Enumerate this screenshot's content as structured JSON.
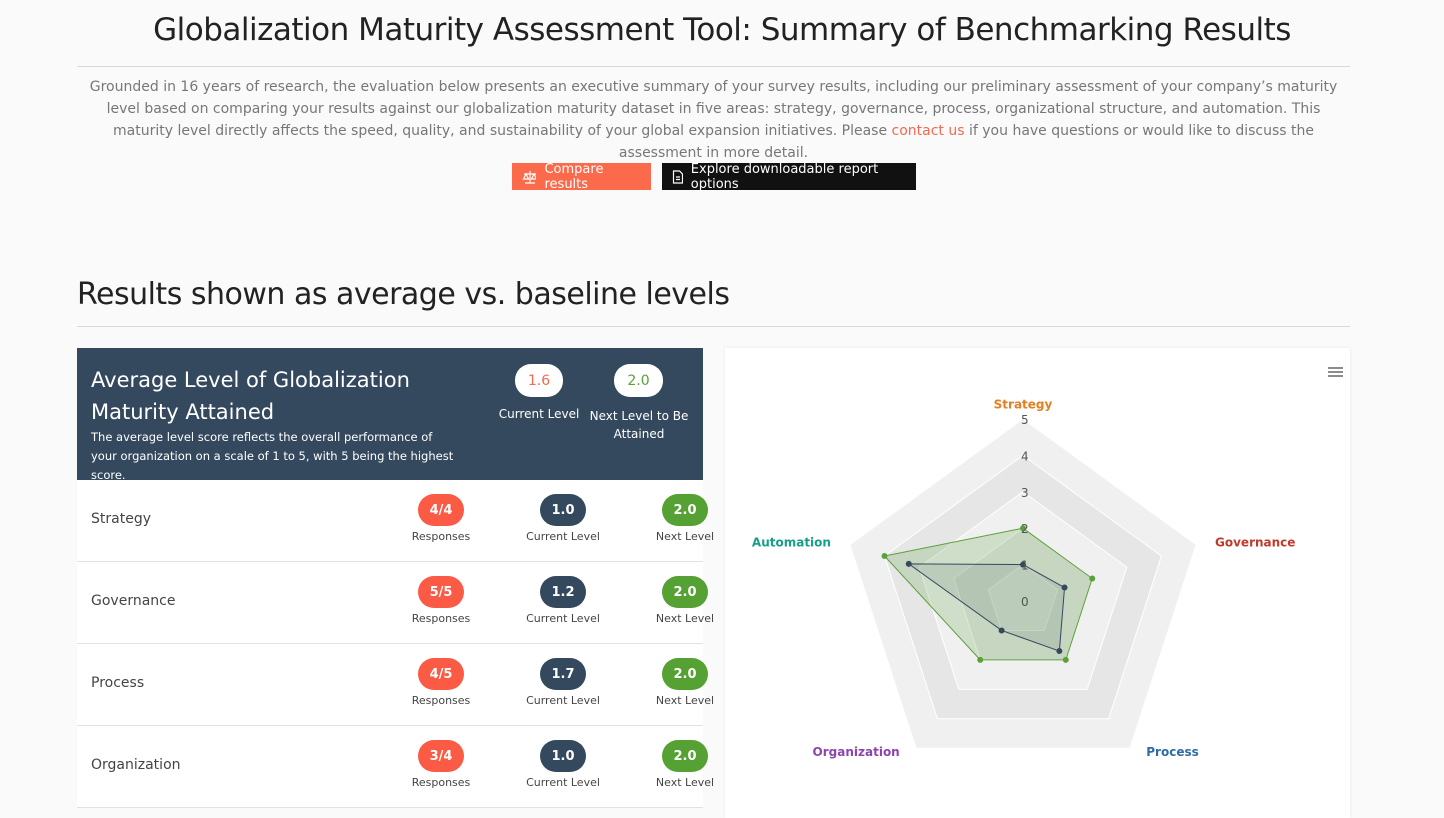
{
  "header": {
    "title": "Globalization Maturity Assessment Tool: Summary of Benchmarking Results",
    "description_before": "Grounded in 16 years of research, the evaluation below presents an executive summary of your survey results, including our preliminary assessment of your company’s maturity level based on comparing your results against our globalization maturity dataset in five areas: strategy, governance, process, organizational structure, and automation. This maturity level directly affects the speed, quality, and sustainability of your global expansion initiatives. Please",
    "description_link": "contact us",
    "description_after": "if you have questions or would like to discuss the assessment in more detail."
  },
  "buttons": [
    "Compare results",
    "Explore downloadable report options"
  ],
  "section": {
    "title": "Results shown as average vs. baseline levels"
  },
  "summary": {
    "title": "Average Level of Globalization Maturity Attained",
    "description": "The average level score reflects the overall performance of your organization on a scale of 1 to 5, with 5 being the highest score.",
    "current": {
      "value": "1.6",
      "label": "Current Level"
    },
    "next": {
      "value": "2.0",
      "label": "Next Level to Be Attained"
    }
  },
  "row_labels": {
    "responses": "Responses",
    "current": "Current Level",
    "next": "Next Level"
  },
  "rows": [
    {
      "name": "Strategy",
      "responses": "4/4",
      "current": "1.0",
      "next": "2.0"
    },
    {
      "name": "Governance",
      "responses": "5/5",
      "current": "1.2",
      "next": "2.0"
    },
    {
      "name": "Process",
      "responses": "4/5",
      "current": "1.7",
      "next": "2.0"
    },
    {
      "name": "Organization",
      "responses": "3/4",
      "current": "1.0",
      "next": "2.0"
    }
  ],
  "chart_data": {
    "type": "radar",
    "categories": [
      "Strategy",
      "Governance",
      "Process",
      "Organization",
      "Automation"
    ],
    "category_colors": [
      "#e67e22",
      "#c0392b",
      "#2e6da4",
      "#8e44ad",
      "#16a085"
    ],
    "ylim": [
      0,
      5
    ],
    "yticks": [
      0,
      1,
      2,
      3,
      4,
      5
    ],
    "series": [
      {
        "color": "#5aa13a",
        "values": [
          2,
          2,
          2,
          2,
          4
        ]
      },
      {
        "color": "#34495e",
        "values": [
          1,
          1.2,
          1.7,
          1,
          3.3
        ]
      }
    ]
  }
}
